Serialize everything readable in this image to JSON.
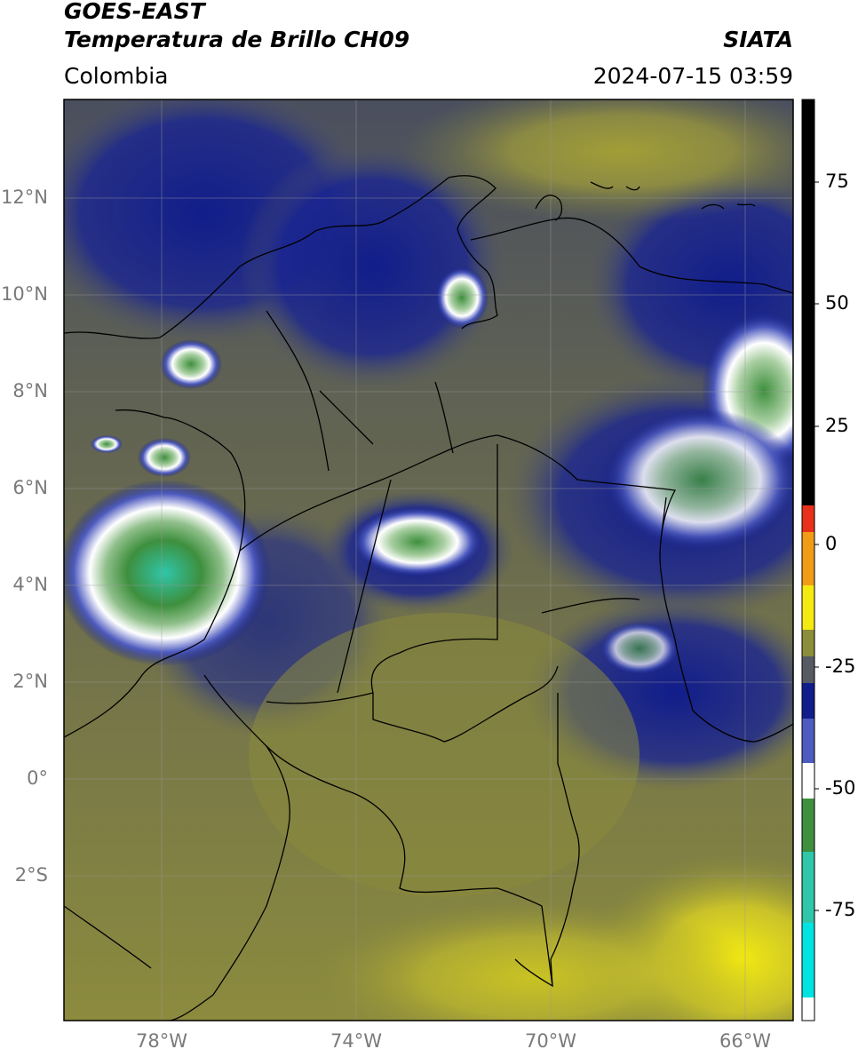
{
  "header": {
    "satellite": "GOES-EAST",
    "product": "Temperatura de Brillo CH09",
    "agency": "SIATA",
    "region": "Colombia",
    "timestamp": "2024-07-15 03:59"
  },
  "map": {
    "lat_ticks": [
      "12°N",
      "10°N",
      "8°N",
      "6°N",
      "4°N",
      "2°N",
      "0°",
      "2°S"
    ],
    "lon_ticks": [
      "78°W",
      "74°W",
      "70°W",
      "66°W"
    ],
    "gridlines": true
  },
  "colorbar": {
    "ticks": [
      "75",
      "50",
      "25",
      "0",
      "-25",
      "-50",
      "-75"
    ],
    "colors": {
      "black": "#000000",
      "red": "#e8311b",
      "orange": "#f29b17",
      "yellow": "#f4ea11",
      "olive": "#8b8d3a",
      "gray": "#555a63",
      "navy": "#111d8a",
      "blue": "#4e5bbf",
      "white": "#ffffff",
      "green": "#3e8f3e",
      "teal": "#2fc6a9",
      "cyan": "#00e3e3"
    }
  }
}
